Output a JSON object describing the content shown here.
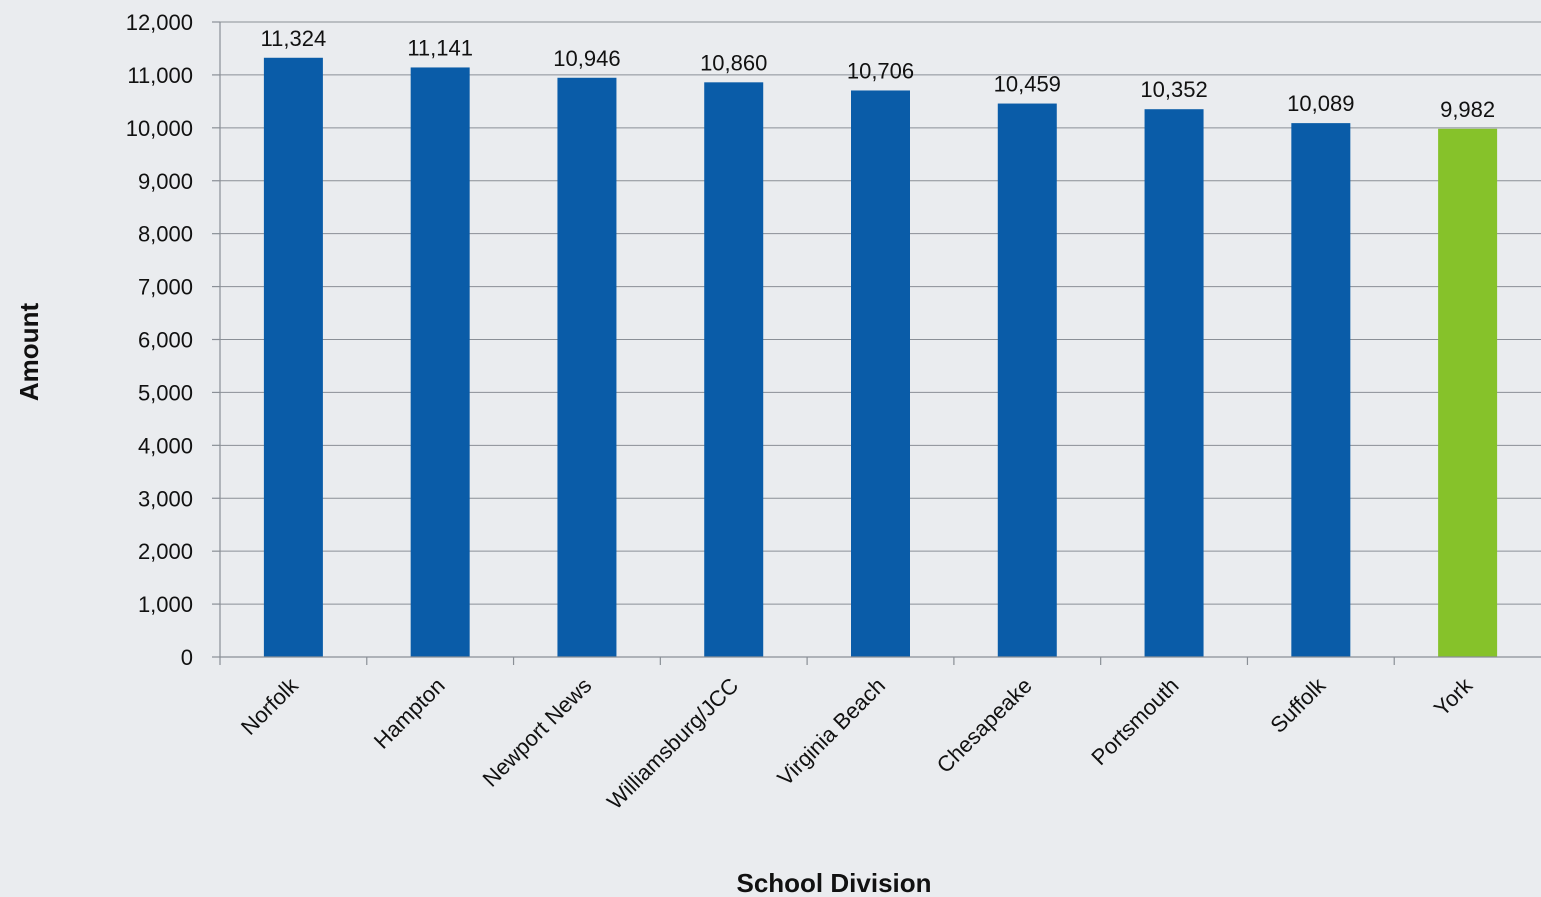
{
  "chart_data": {
    "type": "bar",
    "title": "",
    "xlabel": "School Division",
    "ylabel": "Amount",
    "ylim": [
      0,
      12000
    ],
    "ytick_step": 1000,
    "grid": true,
    "legend": "none",
    "categories": [
      "Norfolk",
      "Hampton",
      "Newport News",
      "Williamsburg/JCC",
      "Virginia Beach",
      "Chesapeake",
      "Portsmouth",
      "Suffolk",
      "York"
    ],
    "values": [
      11324,
      11141,
      10946,
      10860,
      10706,
      10459,
      10352,
      10089,
      9982
    ],
    "value_labels": [
      "11,324",
      "11,141",
      "10,946",
      "10,860",
      "10,706",
      "10,459",
      "10,352",
      "10,089",
      "9,982"
    ],
    "bar_colors": [
      "#0a5ca8",
      "#0a5ca8",
      "#0a5ca8",
      "#0a5ca8",
      "#0a5ca8",
      "#0a5ca8",
      "#0a5ca8",
      "#0a5ca8",
      "#86c22a"
    ]
  }
}
